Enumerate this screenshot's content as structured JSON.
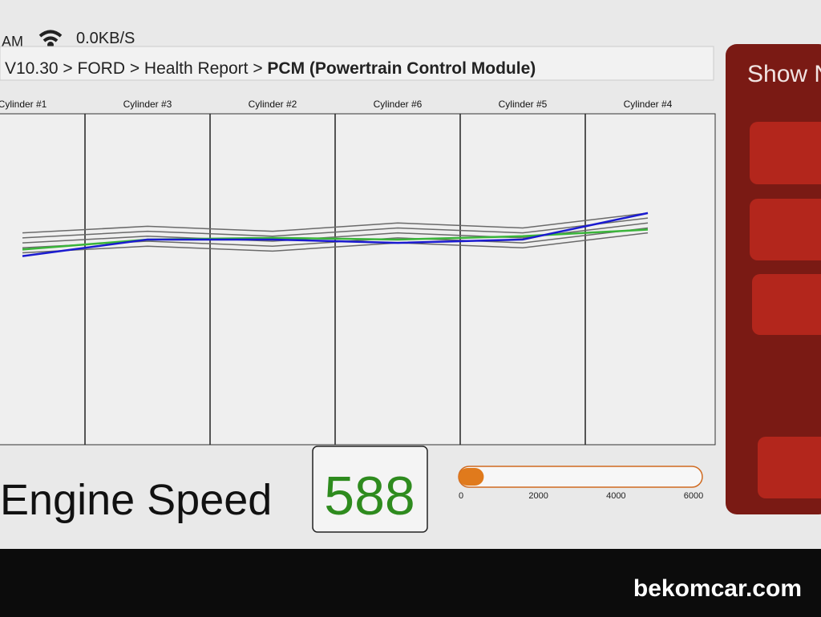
{
  "status_bar": {
    "time": "AM",
    "speed": "0.0KB/S"
  },
  "breadcrumb": {
    "path": "V10.30 > FORD > Health Report > ",
    "current": "PCM (Powertrain Control Module)"
  },
  "chart_data": {
    "type": "line",
    "categories": [
      "Cylinder #1",
      "Cylinder #3",
      "Cylinder #2",
      "Cylinder #6",
      "Cylinder #5",
      "Cylinder #4"
    ],
    "ylim": [
      0,
      100
    ],
    "series": [
      {
        "color": "#6a6a6a",
        "values": [
          58,
          60,
          58.5,
          61,
          59.5,
          64
        ]
      },
      {
        "color": "#6a6a6a",
        "values": [
          59.5,
          61.5,
          60,
          62.5,
          61,
          65.5
        ]
      },
      {
        "color": "#6a6a6a",
        "values": [
          61,
          63,
          61.5,
          64,
          62.5,
          67
        ]
      },
      {
        "color": "#6a6a6a",
        "values": [
          62.5,
          64.5,
          63,
          65.5,
          64,
          68.5
        ]
      },
      {
        "color": "#6a6a6a",
        "values": [
          64,
          66,
          64.5,
          67,
          65.5,
          70
        ]
      },
      {
        "color": "#3ab53a",
        "values": [
          59,
          62,
          62.5,
          62,
          63,
          65
        ]
      },
      {
        "color": "#1a1ad0",
        "values": [
          57,
          62,
          62,
          61,
          62,
          70
        ]
      }
    ]
  },
  "engine_speed": {
    "label": "Engine Speed",
    "value": 588,
    "color": "#e07a1c",
    "xlim": [
      0,
      6000
    ],
    "xticks": [
      0,
      2000,
      4000,
      6000
    ]
  },
  "side_panel": {
    "title": "Show N"
  },
  "watermark": "bekomcar.com"
}
